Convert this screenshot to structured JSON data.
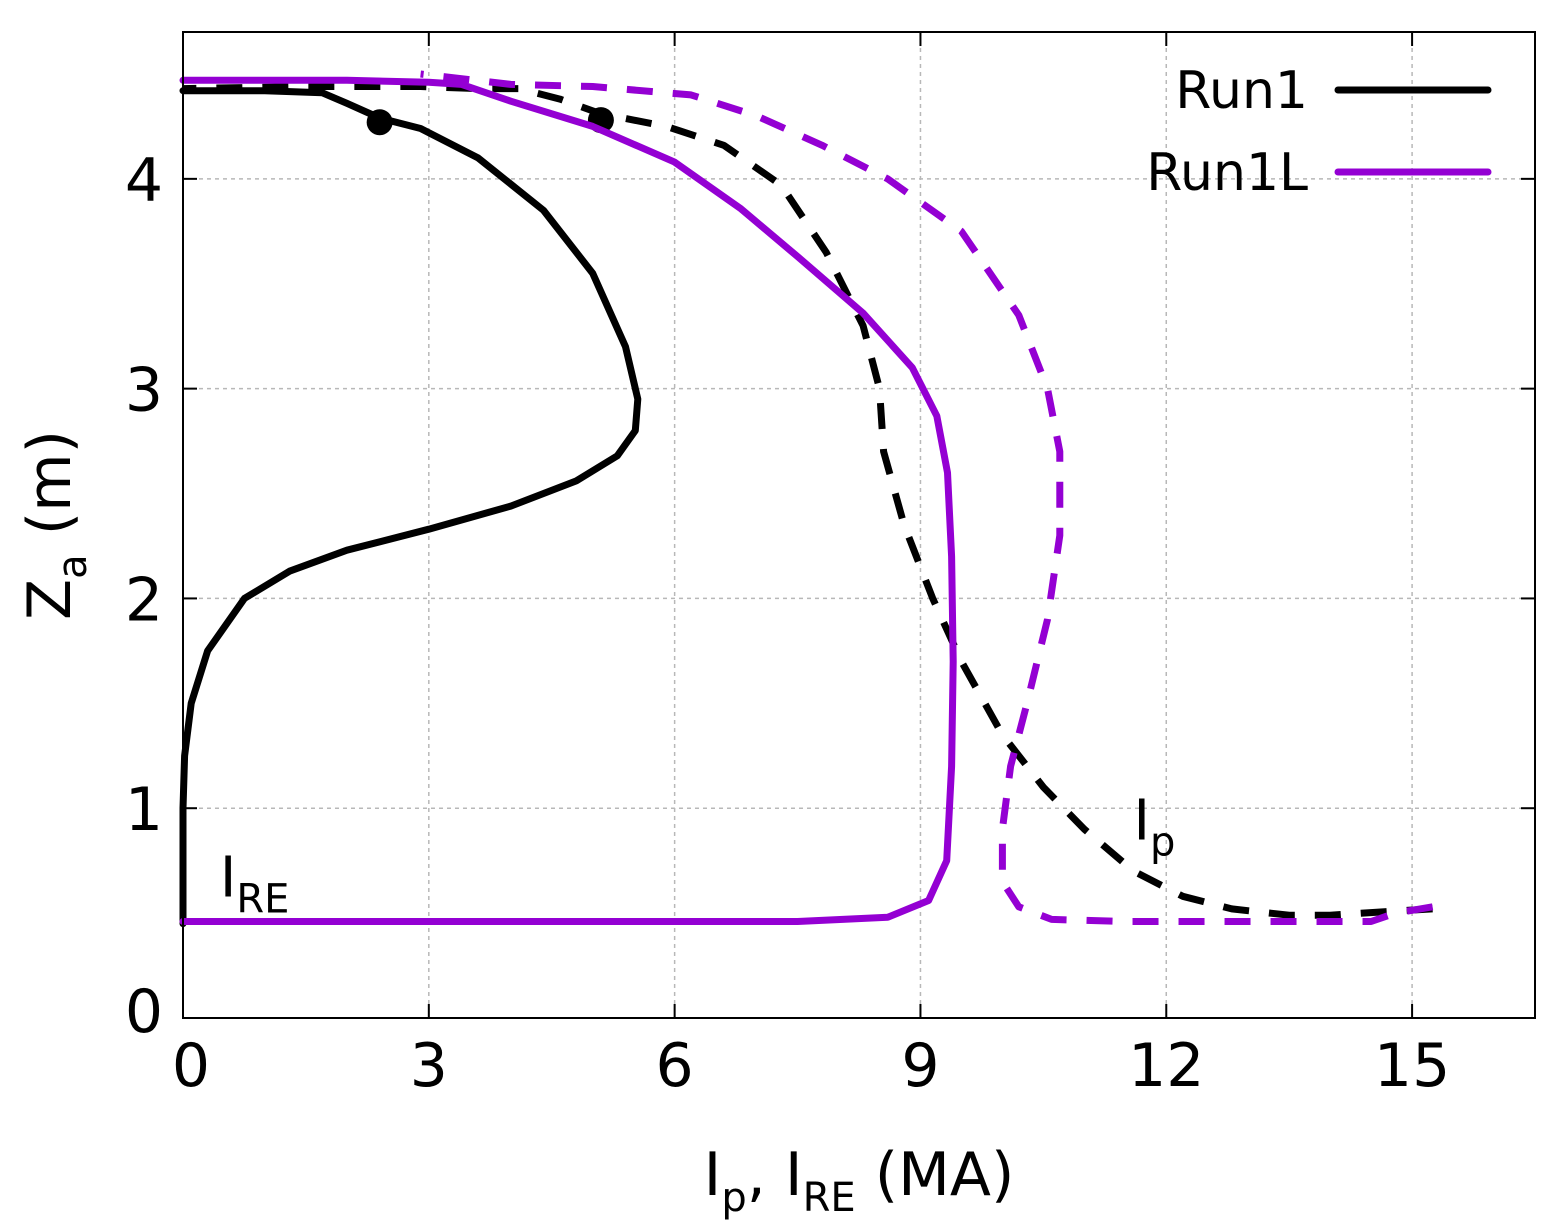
{
  "chart_data": {
    "type": "line",
    "xlabel": {
      "parts": [
        [
          "I",
          ""
        ],
        [
          "p",
          "sub"
        ],
        [
          ", I",
          ""
        ],
        [
          "RE",
          "sub"
        ],
        [
          " (MA)",
          ""
        ]
      ]
    },
    "ylabel": {
      "parts": [
        [
          "Z",
          ""
        ],
        [
          "a",
          "sub"
        ],
        [
          " (m)",
          ""
        ]
      ]
    },
    "xlim": [
      0,
      16.5
    ],
    "ylim": [
      0,
      4.7
    ],
    "xticks": [
      0,
      3,
      6,
      9,
      12,
      15
    ],
    "xtick_labels": [
      "0",
      "3",
      "6",
      "9",
      "12",
      "15"
    ],
    "yticks": [
      0,
      1,
      2,
      3,
      4
    ],
    "ytick_labels": [
      "0",
      "1",
      "2",
      "3",
      "4"
    ],
    "grid": true,
    "legend_position": "top-right",
    "legend": [
      {
        "label": "Run1",
        "color": "#000000"
      },
      {
        "label": "Run1L",
        "color": "#9400d3"
      }
    ],
    "annotations": [
      {
        "parts": [
          [
            "I",
            ""
          ],
          [
            "RE",
            "sub"
          ]
        ],
        "x": 0.45,
        "y": 0.58
      },
      {
        "parts": [
          [
            "I",
            ""
          ],
          [
            "p",
            "sub"
          ]
        ],
        "x": 11.6,
        "y": 0.85
      }
    ],
    "series": [
      {
        "name": "Run1",
        "quantity": "I_RE",
        "color": "#000000",
        "dash": false,
        "marker_points": [
          [
            2.4,
            4.27
          ]
        ],
        "points": [
          [
            0.0,
            0.45
          ],
          [
            0.0,
            0.7
          ],
          [
            0.0,
            1.0
          ],
          [
            0.02,
            1.25
          ],
          [
            0.1,
            1.5
          ],
          [
            0.3,
            1.75
          ],
          [
            0.75,
            2.0
          ],
          [
            1.3,
            2.13
          ],
          [
            2.0,
            2.23
          ],
          [
            3.0,
            2.33
          ],
          [
            4.0,
            2.44
          ],
          [
            4.8,
            2.56
          ],
          [
            5.3,
            2.68
          ],
          [
            5.52,
            2.8
          ],
          [
            5.55,
            2.95
          ],
          [
            5.4,
            3.2
          ],
          [
            5.0,
            3.55
          ],
          [
            4.4,
            3.85
          ],
          [
            3.6,
            4.1
          ],
          [
            2.9,
            4.24
          ],
          [
            2.4,
            4.29
          ],
          [
            2.0,
            4.36
          ],
          [
            1.7,
            4.41
          ],
          [
            1.0,
            4.42
          ],
          [
            0.0,
            4.42
          ]
        ]
      },
      {
        "name": "Run1",
        "quantity": "I_p",
        "color": "#000000",
        "dash": true,
        "marker_points": [
          [
            5.1,
            4.28
          ]
        ],
        "points": [
          [
            15.25,
            0.52
          ],
          [
            14.8,
            0.51
          ],
          [
            14.0,
            0.49
          ],
          [
            13.5,
            0.49
          ],
          [
            12.8,
            0.52
          ],
          [
            12.2,
            0.58
          ],
          [
            11.6,
            0.7
          ],
          [
            11.0,
            0.9
          ],
          [
            10.5,
            1.1
          ],
          [
            10.0,
            1.35
          ],
          [
            9.5,
            1.7
          ],
          [
            9.15,
            2.0
          ],
          [
            8.8,
            2.35
          ],
          [
            8.55,
            2.7
          ],
          [
            8.5,
            3.0
          ],
          [
            8.3,
            3.3
          ],
          [
            7.85,
            3.65
          ],
          [
            7.3,
            3.97
          ],
          [
            6.6,
            4.16
          ],
          [
            5.9,
            4.25
          ],
          [
            5.1,
            4.31
          ],
          [
            4.6,
            4.38
          ],
          [
            4.1,
            4.43
          ],
          [
            3.6,
            4.43
          ],
          [
            2.9,
            4.44
          ],
          [
            1.5,
            4.44
          ],
          [
            0.0,
            4.43
          ]
        ]
      },
      {
        "name": "Run1L",
        "quantity": "I_RE",
        "color": "#9400d3",
        "dash": false,
        "marker_points": [],
        "points": [
          [
            0.0,
            0.46
          ],
          [
            4.0,
            0.46
          ],
          [
            7.5,
            0.46
          ],
          [
            8.6,
            0.48
          ],
          [
            9.1,
            0.56
          ],
          [
            9.32,
            0.75
          ],
          [
            9.38,
            1.2
          ],
          [
            9.4,
            1.7
          ],
          [
            9.38,
            2.2
          ],
          [
            9.33,
            2.6
          ],
          [
            9.2,
            2.87
          ],
          [
            8.9,
            3.1
          ],
          [
            8.3,
            3.36
          ],
          [
            7.5,
            3.63
          ],
          [
            6.8,
            3.86
          ],
          [
            6.0,
            4.08
          ],
          [
            5.0,
            4.25
          ],
          [
            4.0,
            4.37
          ],
          [
            3.4,
            4.45
          ],
          [
            3.0,
            4.46
          ],
          [
            2.0,
            4.47
          ],
          [
            1.0,
            4.47
          ],
          [
            0.0,
            4.47
          ]
        ]
      },
      {
        "name": "Run1L",
        "quantity": "I_p",
        "color": "#9400d3",
        "dash": true,
        "marker_points": [],
        "points": [
          [
            15.25,
            0.53
          ],
          [
            14.8,
            0.5
          ],
          [
            14.5,
            0.46
          ],
          [
            13.5,
            0.46
          ],
          [
            11.5,
            0.46
          ],
          [
            10.6,
            0.47
          ],
          [
            10.2,
            0.53
          ],
          [
            10.0,
            0.65
          ],
          [
            10.0,
            0.9
          ],
          [
            10.1,
            1.2
          ],
          [
            10.3,
            1.5
          ],
          [
            10.55,
            1.9
          ],
          [
            10.7,
            2.3
          ],
          [
            10.7,
            2.7
          ],
          [
            10.55,
            3.0
          ],
          [
            10.2,
            3.35
          ],
          [
            9.5,
            3.75
          ],
          [
            8.6,
            4.0
          ],
          [
            7.8,
            4.16
          ],
          [
            7.0,
            4.3
          ],
          [
            6.2,
            4.4
          ],
          [
            5.0,
            4.44
          ],
          [
            4.0,
            4.45
          ],
          [
            2.9,
            4.5
          ]
        ]
      }
    ]
  }
}
